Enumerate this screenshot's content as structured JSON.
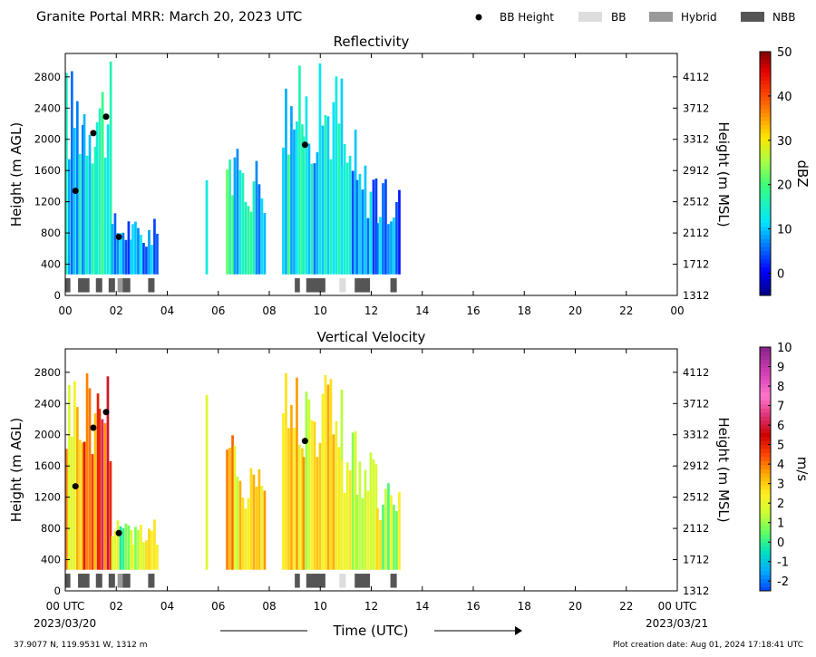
{
  "header": {
    "title": "Granite Portal MRR:  March 20, 2023 UTC",
    "legend": [
      {
        "label": "BB Height",
        "color": "#000000",
        "kind": "dot"
      },
      {
        "label": "BB",
        "color": "#dddddd",
        "kind": "box"
      },
      {
        "label": "Hybrid",
        "color": "#999999",
        "kind": "box"
      },
      {
        "label": "NBB",
        "color": "#555555",
        "kind": "box"
      }
    ]
  },
  "footer": {
    "xlabel": "Time (UTC)",
    "location": "37.9077 N, 119.9531 W, 1312 m",
    "creation": "Plot creation date: Aug 01, 2024 17:18:41 UTC",
    "start_date": "2023/03/20",
    "end_date": "2023/03/21"
  },
  "chart_data": [
    {
      "type": "heatmap",
      "title": "Reflectivity",
      "ylabel": "Height (m AGL)",
      "ylabel_right": "Height (m MSL)",
      "colorbar_label": "dBZ",
      "xlim": [
        0,
        24
      ],
      "ylim": [
        0,
        3100
      ],
      "x_ticks": [
        "00",
        "02",
        "04",
        "06",
        "08",
        "10",
        "12",
        "14",
        "16",
        "18",
        "20",
        "22",
        "00"
      ],
      "y_ticks": [
        0,
        400,
        800,
        1200,
        1600,
        2000,
        2400,
        2800
      ],
      "y_right_ticks": [
        "1312",
        "1712",
        "2112",
        "2512",
        "2912",
        "3312",
        "3712",
        "4112"
      ],
      "colorbar": {
        "min": -5,
        "max": 50,
        "ticks": [
          0,
          10,
          20,
          30,
          40,
          50
        ],
        "scale": "jet"
      },
      "bb_height_points": [
        [
          0.4,
          1340
        ],
        [
          1.1,
          2080
        ],
        [
          1.6,
          2290
        ],
        [
          2.1,
          750
        ],
        [
          9.4,
          1930
        ]
      ],
      "bb_type_segments": [
        {
          "start": 0.0,
          "end": 0.2,
          "type": "NBB"
        },
        {
          "start": 0.5,
          "end": 0.95,
          "type": "NBB"
        },
        {
          "start": 1.2,
          "end": 1.45,
          "type": "NBB"
        },
        {
          "start": 1.7,
          "end": 1.95,
          "type": "NBB"
        },
        {
          "start": 2.05,
          "end": 2.25,
          "type": "Hybrid"
        },
        {
          "start": 2.25,
          "end": 2.55,
          "type": "NBB"
        },
        {
          "start": 3.25,
          "end": 3.5,
          "type": "NBB"
        },
        {
          "start": 9.0,
          "end": 9.2,
          "type": "NBB"
        },
        {
          "start": 9.45,
          "end": 10.2,
          "type": "NBB"
        },
        {
          "start": 10.75,
          "end": 11.0,
          "type": "BB"
        },
        {
          "start": 11.35,
          "end": 11.95,
          "type": "NBB"
        },
        {
          "start": 12.75,
          "end": 13.0,
          "type": "NBB"
        }
      ],
      "precip_columns": [
        {
          "start": 0.0,
          "end": 0.7,
          "top": 3000,
          "value": 10
        },
        {
          "start": 0.7,
          "end": 1.2,
          "top": 3000,
          "value": 12
        },
        {
          "start": 1.2,
          "end": 1.8,
          "top": 3000,
          "value": 18
        },
        {
          "start": 1.8,
          "end": 2.6,
          "top": 1100,
          "value": 8
        },
        {
          "start": 2.6,
          "end": 3.6,
          "top": 1000,
          "value": 6
        },
        {
          "start": 5.5,
          "end": 5.6,
          "top": 2600,
          "value": 8
        },
        {
          "start": 6.3,
          "end": 6.6,
          "top": 2200,
          "value": 18
        },
        {
          "start": 6.6,
          "end": 7.8,
          "top": 1900,
          "value": 12
        },
        {
          "start": 8.5,
          "end": 9.3,
          "top": 3000,
          "value": 14
        },
        {
          "start": 9.3,
          "end": 10.8,
          "top": 3000,
          "value": 12
        },
        {
          "start": 10.8,
          "end": 11.4,
          "top": 2200,
          "value": 10
        },
        {
          "start": 11.4,
          "end": 12.2,
          "top": 1800,
          "value": 8
        },
        {
          "start": 12.2,
          "end": 13.1,
          "top": 1500,
          "value": 6
        }
      ]
    },
    {
      "type": "heatmap",
      "title": "Vertical Velocity",
      "ylabel": "Height (m AGL)",
      "ylabel_right": "Height (m MSL)",
      "colorbar_label": "m/s",
      "xlim": [
        0,
        24
      ],
      "ylim": [
        0,
        3100
      ],
      "x_ticks": [
        "00 UTC",
        "02",
        "04",
        "06",
        "08",
        "10",
        "12",
        "14",
        "16",
        "18",
        "20",
        "22",
        "00 UTC"
      ],
      "y_ticks": [
        0,
        400,
        800,
        1200,
        1600,
        2000,
        2400,
        2800
      ],
      "y_right_ticks": [
        "1312",
        "1712",
        "2112",
        "2512",
        "2912",
        "3312",
        "3712",
        "4112"
      ],
      "colorbar": {
        "min": -2.5,
        "max": 10,
        "ticks": [
          -2,
          -1,
          0,
          1,
          2,
          3,
          4,
          5,
          6,
          7,
          8,
          9,
          10
        ],
        "scale": "velocity"
      },
      "bb_height_points": [
        [
          0.4,
          1340
        ],
        [
          1.1,
          2090
        ],
        [
          1.6,
          2290
        ],
        [
          2.1,
          740
        ],
        [
          9.4,
          1920
        ]
      ],
      "bb_type_segments": [
        {
          "start": 0.0,
          "end": 0.2,
          "type": "NBB"
        },
        {
          "start": 0.5,
          "end": 0.95,
          "type": "NBB"
        },
        {
          "start": 1.2,
          "end": 1.45,
          "type": "NBB"
        },
        {
          "start": 1.7,
          "end": 1.95,
          "type": "NBB"
        },
        {
          "start": 2.05,
          "end": 2.25,
          "type": "Hybrid"
        },
        {
          "start": 2.25,
          "end": 2.55,
          "type": "NBB"
        },
        {
          "start": 3.25,
          "end": 3.5,
          "type": "NBB"
        },
        {
          "start": 9.0,
          "end": 9.2,
          "type": "NBB"
        },
        {
          "start": 9.45,
          "end": 10.2,
          "type": "NBB"
        },
        {
          "start": 10.75,
          "end": 11.0,
          "type": "BB"
        },
        {
          "start": 11.35,
          "end": 11.95,
          "type": "NBB"
        },
        {
          "start": 12.75,
          "end": 13.0,
          "type": "NBB"
        }
      ],
      "precip_columns": [
        {
          "start": 0.0,
          "end": 0.7,
          "top": 3000,
          "value": 3
        },
        {
          "start": 0.7,
          "end": 1.3,
          "top": 3000,
          "value": 4.5
        },
        {
          "start": 1.3,
          "end": 1.8,
          "top": 3000,
          "value": 5
        },
        {
          "start": 1.8,
          "end": 2.6,
          "top": 1100,
          "value": 1
        },
        {
          "start": 2.6,
          "end": 3.6,
          "top": 1000,
          "value": 2
        },
        {
          "start": 5.5,
          "end": 5.6,
          "top": 2600,
          "value": 2.5
        },
        {
          "start": 6.3,
          "end": 6.6,
          "top": 2200,
          "value": 4
        },
        {
          "start": 6.6,
          "end": 7.8,
          "top": 1900,
          "value": 2.5
        },
        {
          "start": 8.5,
          "end": 9.3,
          "top": 3000,
          "value": 3
        },
        {
          "start": 9.3,
          "end": 10.8,
          "top": 3000,
          "value": 2.5
        },
        {
          "start": 10.8,
          "end": 11.4,
          "top": 2200,
          "value": 2
        },
        {
          "start": 11.4,
          "end": 12.2,
          "top": 1800,
          "value": 1.8
        },
        {
          "start": 12.2,
          "end": 13.1,
          "top": 1500,
          "value": 1.5
        }
      ]
    }
  ]
}
